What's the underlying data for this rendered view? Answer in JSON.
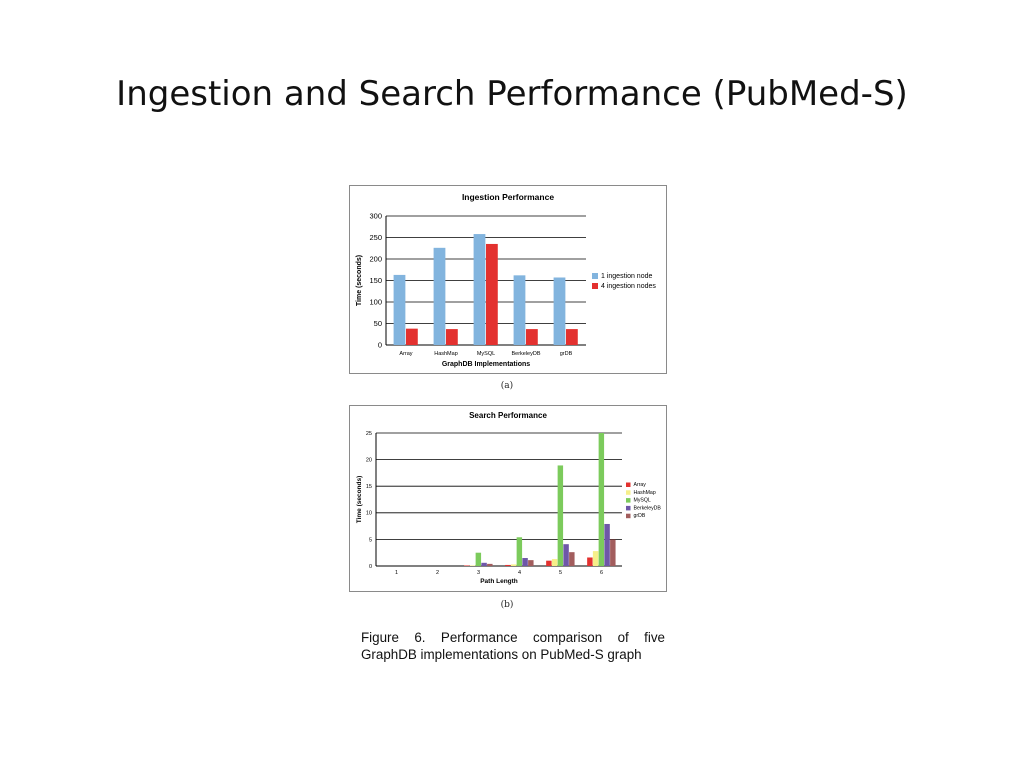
{
  "slide": {
    "title": "Ingestion and Search Performance (PubMed-S)",
    "caption": "Figure 6. Performance comparison of five GraphDB implementations on PubMed-S graph"
  },
  "chart_data": [
    {
      "type": "bar",
      "title": "Ingestion Performance",
      "sublabel": "(a)",
      "xlabel": "GraphDB Implementations",
      "ylabel": "Time (seconds)",
      "ylim": [
        0,
        300
      ],
      "yticks": [
        "0",
        "50",
        "100",
        "150",
        "200",
        "250",
        "300"
      ],
      "categories": [
        "Array",
        "HashMap",
        "MySQL",
        "BerkeleyDB",
        "grDB"
      ],
      "legend_position": "right",
      "grid": true,
      "series": [
        {
          "name": "1 ingestion node",
          "color": "#82b4de",
          "values": [
            163,
            226,
            258,
            162,
            157
          ]
        },
        {
          "name": "4 ingestion nodes",
          "color": "#e3312f",
          "values": [
            38,
            37,
            235,
            37,
            37
          ]
        }
      ]
    },
    {
      "type": "bar",
      "title": "Search Performance",
      "sublabel": "(b)",
      "xlabel": "Path Length",
      "ylabel": "Time (seconds)",
      "ylim": [
        0,
        25
      ],
      "yticks": [
        "0",
        "5",
        "10",
        "15",
        "20",
        "25"
      ],
      "categories": [
        "1",
        "2",
        "3",
        "4",
        "5",
        "6"
      ],
      "legend_position": "right",
      "grid": true,
      "series": [
        {
          "name": "Array",
          "color": "#e3312f",
          "values": [
            0,
            0,
            0.1,
            0.2,
            1.0,
            1.6
          ]
        },
        {
          "name": "HashMap",
          "color": "#f6ef8a",
          "values": [
            0,
            0,
            0.1,
            0.3,
            1.3,
            2.8
          ]
        },
        {
          "name": "MySQL",
          "color": "#7ccb5c",
          "values": [
            0,
            0,
            2.5,
            5.4,
            18.9,
            25.0
          ]
        },
        {
          "name": "BerkeleyDB",
          "color": "#6e57a8",
          "values": [
            0,
            0,
            0.6,
            1.5,
            4.1,
            7.9
          ]
        },
        {
          "name": "grDB",
          "color": "#a25d5d",
          "values": [
            0,
            0,
            0.4,
            1.1,
            2.6,
            5.0
          ]
        }
      ]
    }
  ]
}
